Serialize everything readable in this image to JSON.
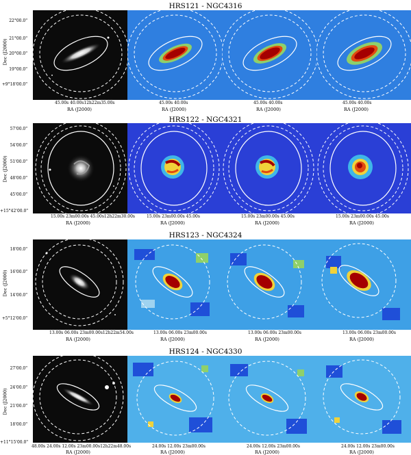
{
  "rows": [
    {
      "title": "HRS121 - NGC4316",
      "y_label": "Dec (J2000)",
      "y_ticks": [
        "22°00.0\"",
        "21°00.0\"",
        "20°00.0\"",
        "19°00.0\"",
        "+9°18'00.0\""
      ],
      "x_label": "RA (J2000)",
      "x_ticks_first": "45.00s   40.00s12h22m35.00s",
      "x_ticks_other": "45.00s    40.00s"
    },
    {
      "title": "HRS122 - NGC4321",
      "y_label": "Dec (J2000)",
      "y_ticks": [
        "57'00.0\"",
        "54'00.0\"",
        "51'00.0\"",
        "48'00.0\"",
        "45'00.0\"",
        "+15°42'00.0\""
      ],
      "x_label": "RA (J2000)",
      "x_ticks_first": "15.00s  23m00.00s  45.00s12h22m30.00s",
      "x_ticks_other": "15.00s  23m00.00s  45.00s"
    },
    {
      "title": "HRS123 - NGC4324",
      "y_label": "Dec (J2000)",
      "y_ticks": [
        "18'00.0\"",
        "16'00.0\"",
        "14'00.0\"",
        "+5°12'00.0\""
      ],
      "x_label": "RA (J2000)",
      "x_ticks_first": "13.00s   06.00s 23m00.00s12h22m54.00s",
      "x_ticks_other": "13.00s   06.00s 23m00.00s"
    },
    {
      "title": "HRS124 - NGC4330",
      "y_label": "Dec (J2000)",
      "y_ticks": [
        "27'00.0\"",
        "24'00.0\"",
        "21'00.0\"",
        "18'00.0\"",
        "+11°15'00.0\""
      ],
      "x_label": "RA (J2000)",
      "x_ticks_first": "48.00s     24.00s   12.00s 23m00.00s12h22m48.00s",
      "x_ticks_other": "24.00s   12.00s 23m00.00s"
    }
  ]
}
